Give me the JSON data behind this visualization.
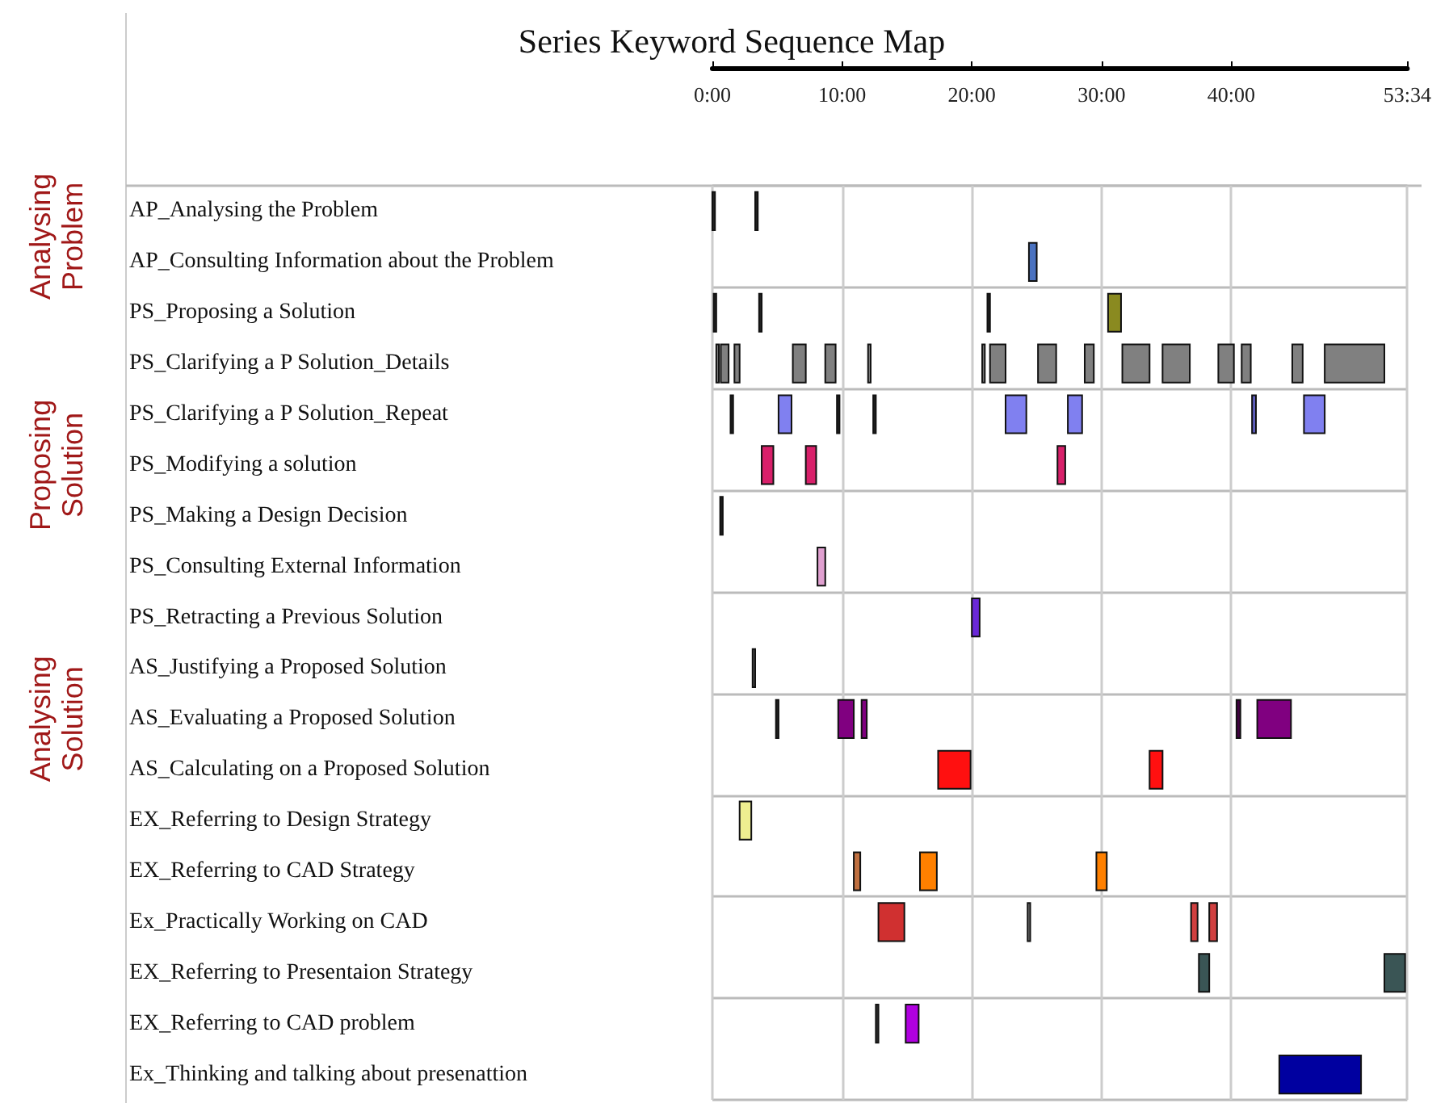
{
  "chart_data": {
    "type": "bar",
    "orientation": "horizontal",
    "title": "Series Keyword Sequence Map",
    "annotations": [
      "Analysing Problem",
      "Proposing Solution",
      "Analysing Solution"
    ],
    "categories": [
      "AP_Analysing the Problem",
      "AP_Consulting Information about the Problem",
      "PS_Proposing a Solution",
      "PS_Clarifying a P Solution_Details",
      "PS_Clarifying a P Solution_Repeat",
      "PS_Modifying a solution",
      "PS_Making a Design Decision",
      "PS_Consulting External Information",
      "PS_Retracting a Previous Solution",
      "AS_Justifying a Proposed Solution",
      "AS_Evaluating a Proposed Solution",
      "AS_Calculating on a Proposed Solution",
      "EX_Referring to Design Strategy",
      "EX_Referring to CAD Strategy",
      "Ex_Practically Working on CAD",
      "EX_Referring to Presentaion Strategy",
      "EX_Referring to CAD problem",
      "Ex_Thinking and talking about presenattion"
    ],
    "xlim": [
      0,
      53.567
    ],
    "xticks": [
      {
        "value": 0,
        "label": "0:00"
      },
      {
        "value": 10,
        "label": "10:00"
      },
      {
        "value": 20,
        "label": "20:00"
      },
      {
        "value": 30,
        "label": "30:00"
      },
      {
        "value": 40,
        "label": "40:00"
      },
      {
        "value": 53.567,
        "label": "53:34"
      }
    ],
    "grid": true,
    "series": [
      {
        "base": [
          0,
          24.4,
          0.1,
          0.3,
          1.4,
          3.8,
          0.6,
          8.1,
          20.0,
          3.1,
          4.9,
          17.4,
          2.1,
          10.9,
          12.8,
          37.5,
          12.6,
          43.7
        ],
        "values": [
          0.2,
          0.6,
          0.2,
          0.2,
          0.2,
          0.9,
          0.2,
          0.6,
          0.6,
          0.2,
          0.2,
          2.5,
          0.9,
          0.5,
          2.0,
          0.8,
          0.2,
          6.3
        ],
        "colors": [
          "#222222",
          "#4a72c0",
          "#222222",
          "#808080",
          "#222222",
          "#d8206a",
          "#222222",
          "#e0a0d0",
          "#6a28d8",
          "#555555",
          "#222222",
          "#ff1010",
          "#eeee90",
          "#c07040",
          "#d03030",
          "#3a5555",
          "#333333",
          "#0000a0"
        ]
      },
      {
        "base": [
          3.3,
          null,
          3.6,
          0.65,
          5.1,
          7.2,
          null,
          null,
          null,
          null,
          9.7,
          33.7,
          null,
          16.0,
          24.3,
          51.8,
          14.9,
          null
        ],
        "values": [
          0.2,
          null,
          0.2,
          0.6,
          1.0,
          0.8,
          null,
          null,
          null,
          null,
          1.2,
          1.0,
          null,
          1.3,
          0.2,
          1.6,
          1.0,
          null
        ],
        "colors": [
          "#222222",
          null,
          "#222222",
          "#808080",
          "#8080f0",
          "#d8206a",
          null,
          null,
          null,
          null,
          "#800080",
          "#ff1010",
          null,
          "#ff8000",
          "#777777",
          "#3a5555",
          "#b000e0",
          null
        ]
      },
      {
        "base": [
          null,
          null,
          21.2,
          1.7,
          9.6,
          26.6,
          null,
          null,
          null,
          null,
          11.5,
          null,
          null,
          29.6,
          36.9,
          null,
          null,
          null
        ],
        "values": [
          null,
          null,
          0.2,
          0.4,
          0.2,
          0.6,
          null,
          null,
          null,
          null,
          0.4,
          null,
          null,
          0.8,
          0.5,
          null,
          null,
          null
        ],
        "colors": [
          null,
          null,
          "#222222",
          "#808080",
          "#222222",
          "#d8206a",
          null,
          null,
          null,
          null,
          "#800080",
          null,
          null,
          "#ff8000",
          "#d04040",
          null,
          null,
          null
        ]
      },
      {
        "base": [
          null,
          null,
          30.5,
          6.2,
          12.4,
          null,
          null,
          null,
          null,
          null,
          40.4,
          null,
          null,
          null,
          38.3,
          null,
          null,
          null
        ],
        "values": [
          null,
          null,
          1.0,
          1.0,
          0.2,
          null,
          null,
          null,
          null,
          null,
          0.3,
          null,
          null,
          null,
          0.6,
          null,
          null,
          null
        ],
        "colors": [
          null,
          null,
          "#8a8a20",
          "#808080",
          "#222222",
          null,
          null,
          null,
          null,
          null,
          "#400040",
          null,
          null,
          null,
          "#d04040",
          null,
          null,
          null
        ]
      },
      {
        "base": [
          null,
          null,
          null,
          8.7,
          22.6,
          null,
          null,
          null,
          null,
          null,
          42.0,
          null,
          null,
          null,
          null,
          null,
          null,
          null
        ],
        "values": [
          null,
          null,
          null,
          0.8,
          1.6,
          null,
          null,
          null,
          null,
          null,
          2.6,
          null,
          null,
          null,
          null,
          null,
          null,
          null
        ],
        "colors": [
          null,
          null,
          null,
          "#808080",
          "#8080f0",
          null,
          null,
          null,
          null,
          null,
          "#800080",
          null,
          null,
          null,
          null,
          null,
          null,
          null
        ]
      },
      {
        "base": [
          null,
          null,
          null,
          12.0,
          27.4,
          null,
          null,
          null,
          null,
          null,
          null,
          null,
          null,
          null,
          null,
          null,
          null,
          null
        ],
        "values": [
          null,
          null,
          null,
          0.2,
          1.1,
          null,
          null,
          null,
          null,
          null,
          null,
          null,
          null,
          null,
          null,
          null,
          null,
          null
        ],
        "colors": [
          null,
          null,
          null,
          "#808080",
          "#8080f0",
          null,
          null,
          null,
          null,
          null,
          null,
          null,
          null,
          null,
          null,
          null,
          null,
          null
        ]
      },
      {
        "base": [
          null,
          null,
          null,
          20.8,
          41.6,
          null,
          null,
          null,
          null,
          null,
          null,
          null,
          null,
          null,
          null,
          null,
          null,
          null
        ],
        "values": [
          null,
          null,
          null,
          0.2,
          0.3,
          null,
          null,
          null,
          null,
          null,
          null,
          null,
          null,
          null,
          null,
          null,
          null,
          null
        ],
        "colors": [
          null,
          null,
          null,
          "#808080",
          "#6060c0",
          null,
          null,
          null,
          null,
          null,
          null,
          null,
          null,
          null,
          null,
          null,
          null,
          null
        ]
      },
      {
        "base": [
          null,
          null,
          null,
          21.4,
          45.6,
          null,
          null,
          null,
          null,
          null,
          null,
          null,
          null,
          null,
          null,
          null,
          null,
          null
        ],
        "values": [
          null,
          null,
          null,
          1.2,
          1.6,
          null,
          null,
          null,
          null,
          null,
          null,
          null,
          null,
          null,
          null,
          null,
          null,
          null
        ],
        "colors": [
          null,
          null,
          null,
          "#808080",
          "#8080f0",
          null,
          null,
          null,
          null,
          null,
          null,
          null,
          null,
          null,
          null,
          null,
          null,
          null
        ]
      },
      {
        "base": [
          null,
          null,
          null,
          25.1,
          null,
          null,
          null,
          null,
          null,
          null,
          null,
          null,
          null,
          null,
          null,
          null,
          null,
          null
        ],
        "values": [
          null,
          null,
          null,
          1.4,
          null,
          null,
          null,
          null,
          null,
          null,
          null,
          null,
          null,
          null,
          null,
          null,
          null,
          null
        ],
        "colors": [
          null,
          null,
          null,
          "#808080",
          null,
          null,
          null,
          null,
          null,
          null,
          null,
          null,
          null,
          null,
          null,
          null,
          null,
          null
        ]
      },
      {
        "base": [
          null,
          null,
          null,
          28.7,
          null,
          null,
          null,
          null,
          null,
          null,
          null,
          null,
          null,
          null,
          null,
          null,
          null,
          null
        ],
        "values": [
          null,
          null,
          null,
          0.7,
          null,
          null,
          null,
          null,
          null,
          null,
          null,
          null,
          null,
          null,
          null,
          null,
          null,
          null
        ],
        "colors": [
          null,
          null,
          null,
          "#808080",
          null,
          null,
          null,
          null,
          null,
          null,
          null,
          null,
          null,
          null,
          null,
          null,
          null,
          null
        ]
      },
      {
        "base": [
          null,
          null,
          null,
          31.6,
          null,
          null,
          null,
          null,
          null,
          null,
          null,
          null,
          null,
          null,
          null,
          null,
          null,
          null
        ],
        "values": [
          null,
          null,
          null,
          2.1,
          null,
          null,
          null,
          null,
          null,
          null,
          null,
          null,
          null,
          null,
          null,
          null,
          null,
          null
        ],
        "colors": [
          null,
          null,
          null,
          "#808080",
          null,
          null,
          null,
          null,
          null,
          null,
          null,
          null,
          null,
          null,
          null,
          null,
          null,
          null
        ]
      },
      {
        "base": [
          null,
          null,
          null,
          34.7,
          null,
          null,
          null,
          null,
          null,
          null,
          null,
          null,
          null,
          null,
          null,
          null,
          null,
          null
        ],
        "values": [
          null,
          null,
          null,
          2.1,
          null,
          null,
          null,
          null,
          null,
          null,
          null,
          null,
          null,
          null,
          null,
          null,
          null,
          null
        ],
        "colors": [
          null,
          null,
          null,
          "#808080",
          null,
          null,
          null,
          null,
          null,
          null,
          null,
          null,
          null,
          null,
          null,
          null,
          null,
          null
        ]
      },
      {
        "base": [
          null,
          null,
          null,
          39.0,
          null,
          null,
          null,
          null,
          null,
          null,
          null,
          null,
          null,
          null,
          null,
          null,
          null,
          null
        ],
        "values": [
          null,
          null,
          null,
          1.2,
          null,
          null,
          null,
          null,
          null,
          null,
          null,
          null,
          null,
          null,
          null,
          null,
          null,
          null
        ],
        "colors": [
          null,
          null,
          null,
          "#808080",
          null,
          null,
          null,
          null,
          null,
          null,
          null,
          null,
          null,
          null,
          null,
          null,
          null,
          null
        ]
      },
      {
        "base": [
          null,
          null,
          null,
          40.8,
          null,
          null,
          null,
          null,
          null,
          null,
          null,
          null,
          null,
          null,
          null,
          null,
          null,
          null
        ],
        "values": [
          null,
          null,
          null,
          0.7,
          null,
          null,
          null,
          null,
          null,
          null,
          null,
          null,
          null,
          null,
          null,
          null,
          null,
          null
        ],
        "colors": [
          null,
          null,
          null,
          "#808080",
          null,
          null,
          null,
          null,
          null,
          null,
          null,
          null,
          null,
          null,
          null,
          null,
          null,
          null
        ]
      },
      {
        "base": [
          null,
          null,
          null,
          44.7,
          null,
          null,
          null,
          null,
          null,
          null,
          null,
          null,
          null,
          null,
          null,
          null,
          null,
          null
        ],
        "values": [
          null,
          null,
          null,
          0.8,
          null,
          null,
          null,
          null,
          null,
          null,
          null,
          null,
          null,
          null,
          null,
          null,
          null,
          null
        ],
        "colors": [
          null,
          null,
          null,
          "#808080",
          null,
          null,
          null,
          null,
          null,
          null,
          null,
          null,
          null,
          null,
          null,
          null,
          null,
          null
        ]
      },
      {
        "base": [
          null,
          null,
          null,
          47.2,
          null,
          null,
          null,
          null,
          null,
          null,
          null,
          null,
          null,
          null,
          null,
          null,
          null,
          null
        ],
        "values": [
          null,
          null,
          null,
          4.6,
          null,
          null,
          null,
          null,
          null,
          null,
          null,
          null,
          null,
          null,
          null,
          null,
          null,
          null
        ],
        "colors": [
          null,
          null,
          null,
          "#808080",
          null,
          null,
          null,
          null,
          null,
          null,
          null,
          null,
          null,
          null,
          null,
          null,
          null,
          null
        ]
      }
    ]
  }
}
